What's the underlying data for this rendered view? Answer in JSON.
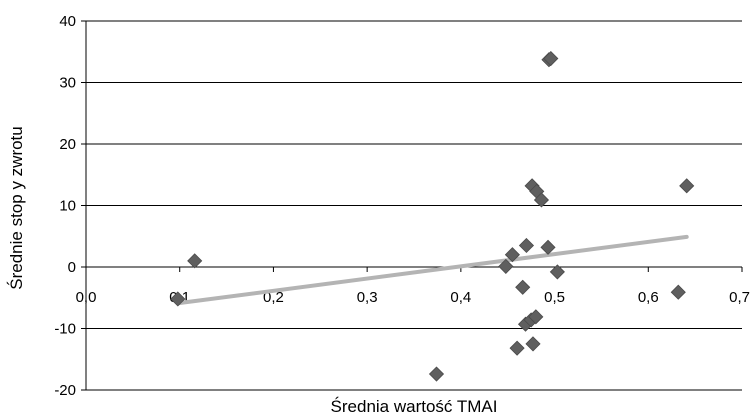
{
  "chart_data": {
    "type": "scatter",
    "title": "",
    "xlabel": "Średnia wartość TMAI",
    "ylabel": "Średnie stop y zwrotu",
    "xlim": [
      0,
      0.7
    ],
    "ylim": [
      -20,
      40
    ],
    "x_ticks": [
      0,
      0.1,
      0.2,
      0.3,
      0.4,
      0.5,
      0.6,
      0.7
    ],
    "x_tick_labels": [
      "0,0",
      "0,1",
      "0,2",
      "0,3",
      "0,4",
      "0,5",
      "0,6",
      "0,7"
    ],
    "y_ticks": [
      -20,
      -10,
      0,
      10,
      20,
      30,
      40
    ],
    "y_tick_labels": [
      "-20",
      "-10",
      "0",
      "10",
      "20",
      "30",
      "40"
    ],
    "grid": {
      "horizontal": true,
      "vertical": false
    },
    "legend": "none",
    "colors": {
      "points": "#5f5f5f",
      "trendline": "#b4b4b4",
      "gridline": "#000000",
      "axis": "#000000"
    },
    "series": [
      {
        "marker": "diamond",
        "points": [
          [
            0.098,
            -5.2
          ],
          [
            0.116,
            1.0
          ],
          [
            0.374,
            -17.4
          ],
          [
            0.448,
            0.1
          ],
          [
            0.455,
            2.0
          ],
          [
            0.46,
            -13.2
          ],
          [
            0.466,
            -3.3
          ],
          [
            0.47,
            3.5
          ],
          [
            0.469,
            -9.3
          ],
          [
            0.475,
            -8.6
          ],
          [
            0.476,
            13.2
          ],
          [
            0.477,
            -12.5
          ],
          [
            0.48,
            -8.1
          ],
          [
            0.481,
            12.3
          ],
          [
            0.486,
            10.9
          ],
          [
            0.493,
            3.2
          ],
          [
            0.494,
            33.7
          ],
          [
            0.496,
            33.9
          ],
          [
            0.503,
            -0.8
          ],
          [
            0.632,
            -4.1
          ],
          [
            0.641,
            13.2
          ]
        ]
      }
    ],
    "trendline": {
      "type": "linear",
      "x_start": 0.098,
      "y_start": -5.9,
      "x_end": 0.641,
      "y_end": 4.9
    }
  }
}
